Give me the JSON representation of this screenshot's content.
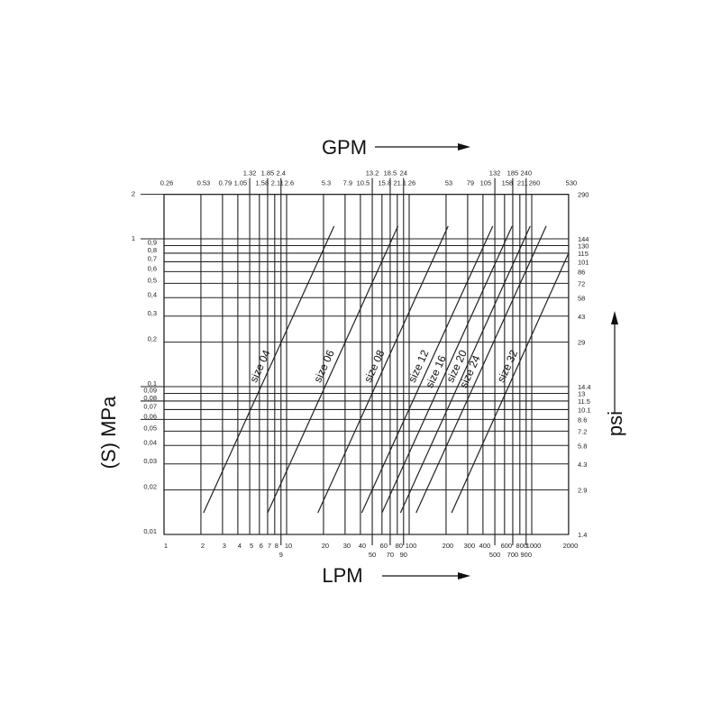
{
  "chart_data": {
    "type": "line",
    "xscale": "log",
    "yscale": "log",
    "xlim": [
      1,
      2000
    ],
    "ylim": [
      0.01,
      2
    ],
    "grid": true,
    "xlabel": "LPM",
    "x2label": "GPM",
    "ylabel": "(S) MPa",
    "y2label": "psi",
    "x_ticks": [
      {
        "v": 1,
        "label": "1"
      },
      {
        "v": 2,
        "label": "2"
      },
      {
        "v": 3,
        "label": "3"
      },
      {
        "v": 4,
        "label": "4"
      },
      {
        "v": 5,
        "label": "5"
      },
      {
        "v": 6,
        "label": "6"
      },
      {
        "v": 7,
        "label": "7"
      },
      {
        "v": 8,
        "label": "8"
      },
      {
        "v": 9,
        "label": "9",
        "low": true
      },
      {
        "v": 10,
        "label": "10"
      },
      {
        "v": 20,
        "label": "20"
      },
      {
        "v": 30,
        "label": "30"
      },
      {
        "v": 40,
        "label": "40"
      },
      {
        "v": 50,
        "label": "50",
        "low": true
      },
      {
        "v": 60,
        "label": "60"
      },
      {
        "v": 70,
        "label": "70",
        "low": true
      },
      {
        "v": 80,
        "label": "80"
      },
      {
        "v": 90,
        "label": "90",
        "low": true
      },
      {
        "v": 100,
        "label": "100"
      },
      {
        "v": 200,
        "label": "200"
      },
      {
        "v": 300,
        "label": "300"
      },
      {
        "v": 400,
        "label": "400"
      },
      {
        "v": 500,
        "label": "500",
        "low": true
      },
      {
        "v": 600,
        "label": "600"
      },
      {
        "v": 700,
        "label": "700",
        "low": true
      },
      {
        "v": 800,
        "label": "800"
      },
      {
        "v": 900,
        "label": "900",
        "low": true
      },
      {
        "v": 1000,
        "label": "1000"
      },
      {
        "v": 2000,
        "label": "2000"
      }
    ],
    "x2_ticks": [
      {
        "v": 1,
        "label": "0.26"
      },
      {
        "v": 2,
        "label": "0.53"
      },
      {
        "v": 3,
        "label": "0.79"
      },
      {
        "v": 4,
        "label": "1.05"
      },
      {
        "v": 5,
        "label": "1.32",
        "high": true
      },
      {
        "v": 6,
        "label": "1.58"
      },
      {
        "v": 7,
        "label": "1.85",
        "high": true
      },
      {
        "v": 8,
        "label": "2.11"
      },
      {
        "v": 9,
        "label": "2.4",
        "high": true
      },
      {
        "v": 10,
        "label": "2.6"
      },
      {
        "v": 20,
        "label": "5.3"
      },
      {
        "v": 30,
        "label": "7.9"
      },
      {
        "v": 40,
        "label": "10.5"
      },
      {
        "v": 50,
        "label": "13.2",
        "high": true
      },
      {
        "v": 60,
        "label": "15.8"
      },
      {
        "v": 70,
        "label": "18.5",
        "high": true
      },
      {
        "v": 80,
        "label": "21.1"
      },
      {
        "v": 90,
        "label": "24",
        "high": true
      },
      {
        "v": 100,
        "label": "26"
      },
      {
        "v": 200,
        "label": "53"
      },
      {
        "v": 300,
        "label": "79"
      },
      {
        "v": 400,
        "label": "105"
      },
      {
        "v": 500,
        "label": "132",
        "high": true
      },
      {
        "v": 600,
        "label": "158"
      },
      {
        "v": 700,
        "label": "185",
        "high": true
      },
      {
        "v": 800,
        "label": "211"
      },
      {
        "v": 900,
        "label": "240",
        "high": true
      },
      {
        "v": 1000,
        "label": "260"
      },
      {
        "v": 2000,
        "label": "530"
      }
    ],
    "y_ticks": [
      {
        "v": 0.01,
        "label": "0,01"
      },
      {
        "v": 0.02,
        "label": "0,02"
      },
      {
        "v": 0.03,
        "label": "0,03"
      },
      {
        "v": 0.04,
        "label": "0,04"
      },
      {
        "v": 0.05,
        "label": "0,05"
      },
      {
        "v": 0.06,
        "label": "0,06",
        "ext": true
      },
      {
        "v": 0.07,
        "label": "0,07"
      },
      {
        "v": 0.08,
        "label": "0,08",
        "ext": true
      },
      {
        "v": 0.09,
        "label": "0,09"
      },
      {
        "v": 0.1,
        "label": "0,1",
        "ext": true
      },
      {
        "v": 0.2,
        "label": "0,2"
      },
      {
        "v": 0.3,
        "label": "0,3"
      },
      {
        "v": 0.4,
        "label": "0,4"
      },
      {
        "v": 0.5,
        "label": "0,5"
      },
      {
        "v": 0.6,
        "label": "0,6"
      },
      {
        "v": 0.7,
        "label": "0,7"
      },
      {
        "v": 0.8,
        "label": "0,8"
      },
      {
        "v": 0.9,
        "label": "0,9"
      },
      {
        "v": 1,
        "label": "1",
        "ext": true
      },
      {
        "v": 2,
        "label": "2",
        "ext": true
      }
    ],
    "y2_ticks": [
      {
        "v": 0.01,
        "label": "1.4"
      },
      {
        "v": 0.02,
        "label": "2.9"
      },
      {
        "v": 0.03,
        "label": "4.3"
      },
      {
        "v": 0.04,
        "label": "5.8"
      },
      {
        "v": 0.05,
        "label": "7.2"
      },
      {
        "v": 0.06,
        "label": "8.6"
      },
      {
        "v": 0.07,
        "label": "10.1"
      },
      {
        "v": 0.08,
        "label": "11.5"
      },
      {
        "v": 0.09,
        "label": "13"
      },
      {
        "v": 0.1,
        "label": "14.4"
      },
      {
        "v": 0.2,
        "label": "29"
      },
      {
        "v": 0.3,
        "label": "43"
      },
      {
        "v": 0.4,
        "label": "58"
      },
      {
        "v": 0.5,
        "label": "72"
      },
      {
        "v": 0.6,
        "label": "86"
      },
      {
        "v": 0.7,
        "label": "101"
      },
      {
        "v": 0.8,
        "label": "115"
      },
      {
        "v": 0.9,
        "label": "130"
      },
      {
        "v": 1,
        "label": "144"
      },
      {
        "v": 2,
        "label": "290"
      }
    ],
    "series": [
      {
        "name": "size 04",
        "x": [
          2.1,
          24.4
        ],
        "y": [
          0.014,
          1.22
        ]
      },
      {
        "name": "size 06",
        "x": [
          7.0,
          81
        ],
        "y": [
          0.014,
          1.22
        ]
      },
      {
        "name": "size 08",
        "x": [
          18,
          208
        ],
        "y": [
          0.014,
          1.22
        ]
      },
      {
        "name": "size 12",
        "x": [
          41,
          481
        ],
        "y": [
          0.014,
          1.22
        ]
      },
      {
        "name": "size 16",
        "x": [
          60,
          692
        ],
        "y": [
          0.014,
          1.22
        ]
      },
      {
        "name": "size 20",
        "x": [
          85,
          972
        ],
        "y": [
          0.014,
          1.22
        ]
      },
      {
        "name": "size 24",
        "x": [
          114,
          1312
        ],
        "y": [
          0.014,
          1.22
        ]
      },
      {
        "name": "size 32",
        "x": [
          222,
          2000
        ],
        "y": [
          0.014,
          0.8
        ]
      }
    ],
    "line_color": "#222222"
  }
}
